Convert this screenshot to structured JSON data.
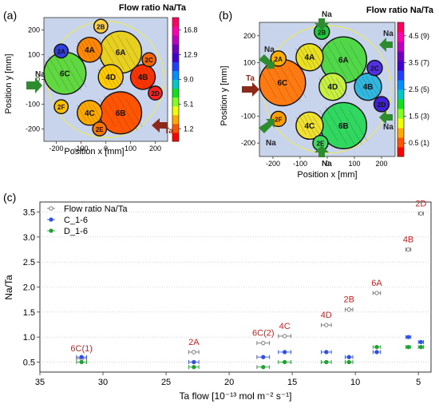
{
  "panels": {
    "a": {
      "label": "(a)",
      "colorbar_title": "Flow ratio Na/Ta",
      "colorbar_ticks": [
        "16.8",
        "12.9",
        "9.0",
        "5.1",
        "1.2"
      ],
      "colorbar_range": [
        0,
        20
      ],
      "colorbar_colors": [
        "#ff0000",
        "#ff5500",
        "#ffaa00",
        "#f0ff00",
        "#80ff20",
        "#10e020",
        "#00c8c8",
        "#0090ff",
        "#2040ff",
        "#4000d0",
        "#7000c0",
        "#c000c0",
        "#ff00b0",
        "#ff0060"
      ],
      "xlabel": "Position x [mm]",
      "ylabel": "Position y [mm]",
      "xticks": [
        -200,
        -100,
        0,
        100,
        200
      ],
      "yticks": [
        -200,
        -100,
        0,
        100,
        200
      ],
      "lim": [
        -250,
        250
      ],
      "inflow_labels": [
        "Na",
        "Ta"
      ],
      "disks": [
        {
          "label": "6A",
          "x": 60,
          "y": 110,
          "r": 85,
          "color": "#e8d020"
        },
        {
          "label": "6C",
          "x": -165,
          "y": 25,
          "r": 85,
          "color": "#60d840"
        },
        {
          "label": "6B",
          "x": 60,
          "y": -135,
          "r": 85,
          "color": "#ff5500"
        },
        {
          "label": "4A",
          "x": -65,
          "y": 120,
          "r": 50,
          "color": "#ff8800"
        },
        {
          "label": "4B",
          "x": 150,
          "y": 10,
          "r": 50,
          "color": "#ff3300"
        },
        {
          "label": "4C",
          "x": -65,
          "y": -135,
          "r": 50,
          "color": "#ffaa00"
        },
        {
          "label": "4D",
          "x": 20,
          "y": 10,
          "r": 50,
          "color": "#ffcc00"
        },
        {
          "label": "2A",
          "x": -180,
          "y": 115,
          "r": 28,
          "color": "#3040e0"
        },
        {
          "label": "2B",
          "x": -20,
          "y": 215,
          "r": 28,
          "color": "#ffd040"
        },
        {
          "label": "2C",
          "x": 175,
          "y": 80,
          "r": 28,
          "color": "#ff6600"
        },
        {
          "label": "2D",
          "x": 200,
          "y": -55,
          "r": 28,
          "color": "#ff2020"
        },
        {
          "label": "2E",
          "x": -25,
          "y": -200,
          "r": 28,
          "color": "#ff7700"
        },
        {
          "label": "2F",
          "x": -180,
          "y": -110,
          "r": 28,
          "color": "#ffc000"
        }
      ]
    },
    "b": {
      "label": "(b)",
      "colorbar_title": "Flow ratio Na/Ta",
      "colorbar_ticks": [
        "4.5 (9)",
        "3.5 (7)",
        "2.5 (5)",
        "1.5 (3)",
        "0.5 (1)"
      ],
      "colorbar_range": [
        0,
        5
      ],
      "colorbar_colors": [
        "#ff0000",
        "#ff5500",
        "#ffaa00",
        "#f0ff00",
        "#80ff20",
        "#10e020",
        "#00c8c8",
        "#0090ff",
        "#2040ff",
        "#4000d0",
        "#7000c0",
        "#c000c0",
        "#ff00b0",
        "#ff0060"
      ],
      "xlabel": "Position x [mm]",
      "ylabel": "Position y [mm]",
      "xticks": [
        -200,
        -100,
        0,
        100,
        200
      ],
      "yticks": [
        -200,
        -100,
        0,
        100,
        200
      ],
      "lim": [
        -250,
        250
      ],
      "inflow_labels": [
        "Na",
        "Na",
        "Na",
        "Na",
        "Na",
        "Na",
        "Ta"
      ],
      "disks": [
        {
          "label": "6A",
          "x": 60,
          "y": 110,
          "r": 85,
          "color": "#50d848"
        },
        {
          "label": "6C",
          "x": -165,
          "y": 25,
          "r": 85,
          "color": "#ff7a10"
        },
        {
          "label": "6B",
          "x": 60,
          "y": -135,
          "r": 85,
          "color": "#30d860"
        },
        {
          "label": "4A",
          "x": -65,
          "y": 120,
          "r": 50,
          "color": "#e8e020"
        },
        {
          "label": "4B",
          "x": 150,
          "y": 10,
          "r": 50,
          "color": "#30b8e0"
        },
        {
          "label": "4C",
          "x": -65,
          "y": -135,
          "r": 50,
          "color": "#f0e030"
        },
        {
          "label": "4D",
          "x": 20,
          "y": 10,
          "r": 50,
          "color": "#c8f040"
        },
        {
          "label": "2A",
          "x": -180,
          "y": 115,
          "r": 28,
          "color": "#ffb000"
        },
        {
          "label": "2B",
          "x": -20,
          "y": 215,
          "r": 28,
          "color": "#20c840"
        },
        {
          "label": "2C",
          "x": 175,
          "y": 80,
          "r": 28,
          "color": "#5030e0"
        },
        {
          "label": "2D",
          "x": 200,
          "y": -55,
          "r": 28,
          "color": "#4020d8"
        },
        {
          "label": "2E",
          "x": -25,
          "y": -200,
          "r": 28,
          "color": "#40d860"
        },
        {
          "label": "2F",
          "x": -180,
          "y": -110,
          "r": 28,
          "color": "#ffa000"
        }
      ]
    },
    "c": {
      "label": "(c)"
    }
  },
  "chart_data": {
    "type": "scatter",
    "xlabel": "Ta flow [10⁻¹³ mol m⁻² s⁻¹]",
    "ylabel": "Na/Ta",
    "xlim": [
      35,
      4
    ],
    "ylim": [
      0.3,
      3.7
    ],
    "xticks": [
      35,
      30,
      25,
      20,
      15,
      10,
      5
    ],
    "yticks": [
      0.5,
      1.0,
      1.5,
      2.0,
      2.5,
      3.0,
      3.5
    ],
    "grid": "horizontal dotted",
    "legend_position": "top-left",
    "annotation_color": "#cc2020",
    "series": [
      {
        "name": "Flow ratio Na/Ta",
        "marker": "open-circle",
        "color": "#707070",
        "points": [
          {
            "x": 31.7,
            "y": 0.57,
            "xerr": 0.4,
            "label": "6C(1)"
          },
          {
            "x": 22.8,
            "y": 0.7,
            "xerr": 0.4,
            "label": "2A"
          },
          {
            "x": 17.3,
            "y": 0.88,
            "xerr": 0.5,
            "label": "6C(2)"
          },
          {
            "x": 15.6,
            "y": 1.02,
            "xerr": 0.5,
            "label": "4C"
          },
          {
            "x": 12.3,
            "y": 1.24,
            "xerr": 0.4,
            "label": "4D"
          },
          {
            "x": 10.5,
            "y": 1.55,
            "xerr": 0.3,
            "label": "2B"
          },
          {
            "x": 8.3,
            "y": 1.88,
            "xerr": 0.3,
            "label": "6A"
          },
          {
            "x": 5.8,
            "y": 2.75,
            "xerr": 0.2,
            "label": "4B"
          },
          {
            "x": 4.8,
            "y": 3.47,
            "xerr": 0.2,
            "label": "2D"
          }
        ]
      },
      {
        "name": "C_1-6",
        "marker": "filled-circle",
        "color": "#3050e0",
        "points": [
          {
            "x": 31.7,
            "y": 0.6,
            "xerr": 0.4
          },
          {
            "x": 22.8,
            "y": 0.5,
            "xerr": 0.4
          },
          {
            "x": 17.3,
            "y": 0.6,
            "xerr": 0.5
          },
          {
            "x": 15.6,
            "y": 0.7,
            "xerr": 0.5
          },
          {
            "x": 12.3,
            "y": 0.7,
            "xerr": 0.4
          },
          {
            "x": 10.5,
            "y": 0.6,
            "xerr": 0.3
          },
          {
            "x": 8.3,
            "y": 0.7,
            "xerr": 0.3
          },
          {
            "x": 5.8,
            "y": 1.0,
            "xerr": 0.2
          },
          {
            "x": 4.8,
            "y": 0.9,
            "xerr": 0.2
          }
        ]
      },
      {
        "name": "D_1-6",
        "marker": "filled-circle",
        "color": "#20a030",
        "points": [
          {
            "x": 31.7,
            "y": 0.5,
            "xerr": 0.4
          },
          {
            "x": 22.8,
            "y": 0.4,
            "xerr": 0.4
          },
          {
            "x": 17.3,
            "y": 0.4,
            "xerr": 0.5
          },
          {
            "x": 15.6,
            "y": 0.5,
            "xerr": 0.5
          },
          {
            "x": 12.3,
            "y": 0.5,
            "xerr": 0.4
          },
          {
            "x": 10.5,
            "y": 0.5,
            "xerr": 0.3
          },
          {
            "x": 8.3,
            "y": 0.8,
            "xerr": 0.3
          },
          {
            "x": 5.8,
            "y": 0.8,
            "xerr": 0.2
          },
          {
            "x": 4.8,
            "y": 0.8,
            "xerr": 0.2
          }
        ]
      }
    ]
  }
}
